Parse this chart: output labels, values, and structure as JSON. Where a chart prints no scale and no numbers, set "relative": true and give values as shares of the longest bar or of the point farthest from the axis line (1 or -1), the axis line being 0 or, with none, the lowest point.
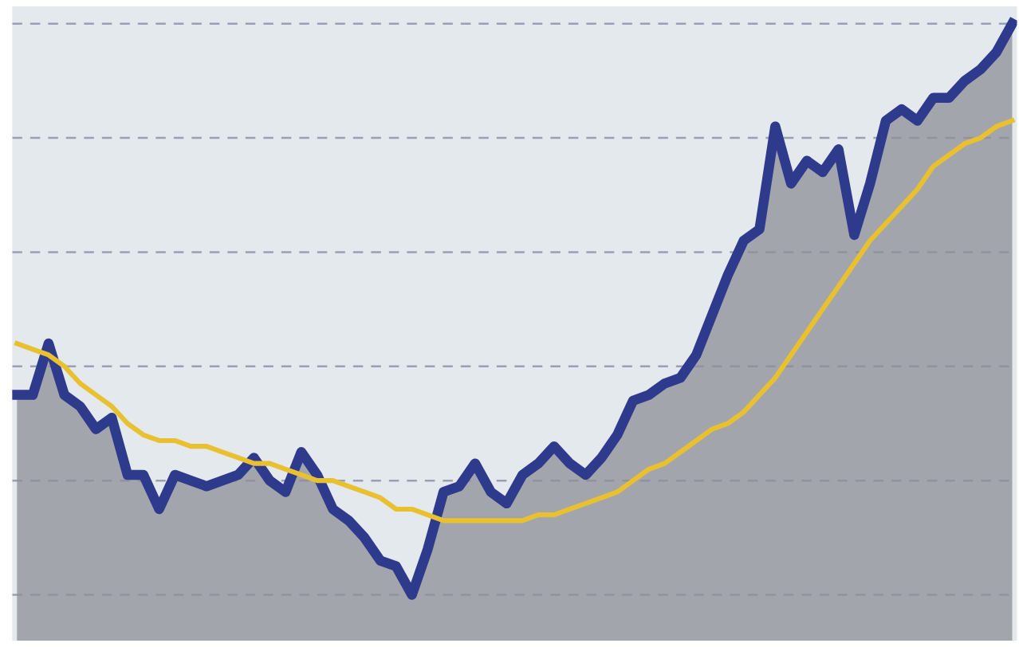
{
  "chart_data": {
    "type": "line",
    "relative": true,
    "grid": "y",
    "line_style": "solid",
    "categories": [
      null,
      null,
      null,
      null,
      null,
      null,
      null,
      null,
      null,
      null,
      null,
      null,
      null,
      null,
      null,
      null,
      null,
      null,
      null,
      null,
      null,
      null,
      null,
      null,
      null,
      null,
      null,
      null,
      null,
      null,
      null,
      null,
      null,
      null,
      null,
      null,
      null,
      null,
      null,
      null,
      null,
      null,
      null,
      null,
      null,
      null,
      null,
      null,
      null,
      null,
      null,
      null,
      null,
      null,
      null,
      null,
      null,
      null,
      null,
      null,
      null,
      null,
      null,
      null
    ],
    "series": [
      {
        "type": "area",
        "color": "#2e3a8c",
        "values": [
          0.35,
          0.35,
          0.44,
          0.35,
          0.33,
          0.29,
          0.31,
          0.21,
          0.21,
          0.15,
          0.21,
          0.2,
          0.19,
          0.2,
          0.21,
          0.24,
          0.2,
          0.18,
          0.25,
          0.21,
          0.15,
          0.13,
          0.1,
          0.06,
          0.05,
          0,
          0.08,
          0.18,
          0.19,
          0.23,
          0.18,
          0.16,
          0.21,
          0.23,
          0.26,
          0.23,
          0.21,
          0.24,
          0.28,
          0.34,
          0.35,
          0.37,
          0.38,
          0.42,
          0.49,
          0.56,
          0.62,
          0.64,
          0.82,
          0.72,
          0.76,
          0.74,
          0.78,
          0.63,
          0.72,
          0.83,
          0.85,
          0.83,
          0.87,
          0.87,
          0.9,
          0.92,
          0.95,
          1
        ]
      },
      {
        "color": "#e8c030",
        "values": [
          0.44,
          0.43,
          0.42,
          0.4,
          0.37,
          0.35,
          0.33,
          0.3,
          0.28,
          0.27,
          0.27,
          0.26,
          0.26,
          0.25,
          0.24,
          0.23,
          0.23,
          0.22,
          0.21,
          0.2,
          0.2,
          0.19,
          0.18,
          0.17,
          0.15,
          0.15,
          0.14,
          0.13,
          0.13,
          0.13,
          0.13,
          0.13,
          0.13,
          0.14,
          0.14,
          0.15,
          0.16,
          0.17,
          0.18,
          0.2,
          0.22,
          0.23,
          0.25,
          0.27,
          0.29,
          0.3,
          0.32,
          0.35,
          0.38,
          0.42,
          0.46,
          0.5,
          0.54,
          0.58,
          0.62,
          0.65,
          0.68,
          0.71,
          0.75,
          0.77,
          0.79,
          0.8,
          0.82,
          0.83
        ]
      }
    ]
  }
}
